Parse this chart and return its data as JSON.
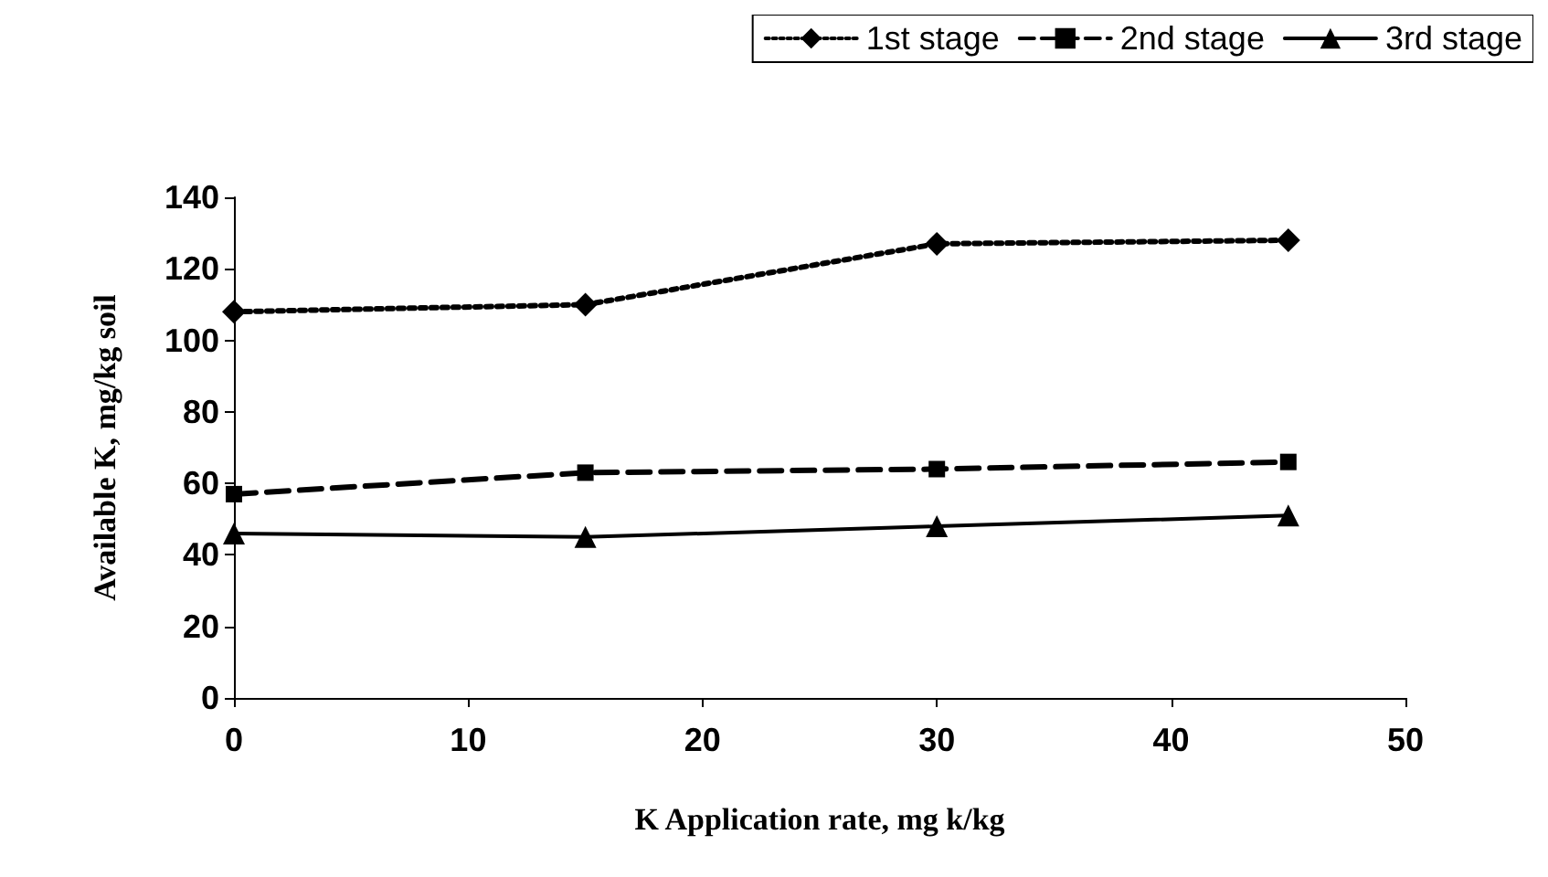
{
  "chart_data": {
    "type": "line",
    "xlabel": "K Application rate, mg k/kg",
    "ylabel": "Available K, mg/kg soil",
    "x": [
      0,
      15,
      30,
      45
    ],
    "series": [
      {
        "name": "1st stage",
        "color": "#000000",
        "values": [
          108,
          110,
          127,
          128
        ],
        "marker": "diamond",
        "line_style": "dotted"
      },
      {
        "name": "2nd stage",
        "color": "#000000",
        "values": [
          57,
          63,
          64,
          66
        ],
        "marker": "square",
        "line_style": "dashed"
      },
      {
        "name": "3rd stage",
        "color": "#000000",
        "values": [
          46,
          45,
          48,
          51
        ],
        "marker": "triangle",
        "line_style": "solid"
      }
    ],
    "xlim": [
      0,
      50
    ],
    "xticks": [
      0,
      10,
      20,
      30,
      40,
      50
    ],
    "ylim": [
      0,
      140
    ],
    "yticks": [
      0,
      20,
      40,
      60,
      80,
      100,
      120,
      140
    ],
    "grid": false,
    "legend": "top right"
  }
}
